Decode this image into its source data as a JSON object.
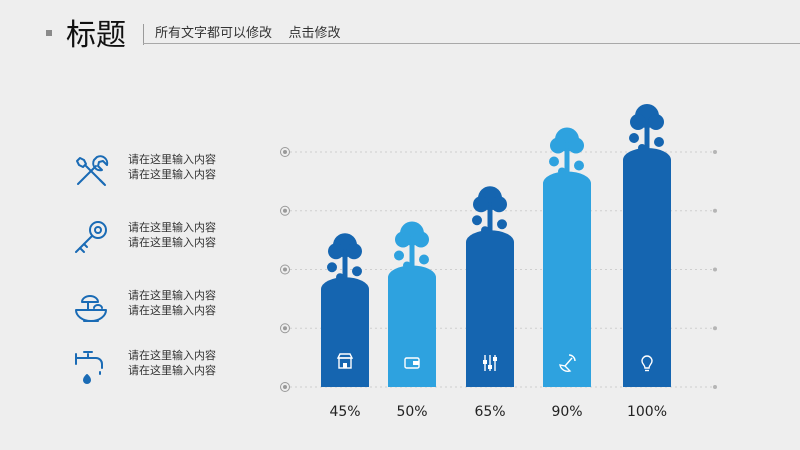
{
  "header": {
    "title": "标题",
    "subtitle": "所有文字都可以修改    点击修改"
  },
  "features": [
    {
      "icon": "tools-icon",
      "line1": "请在这里输入内容",
      "line2": "请在这里输入内容"
    },
    {
      "icon": "key-icon",
      "line1": "请在这里输入内容",
      "line2": "请在这里输入内容"
    },
    {
      "icon": "mushroom-bowl-icon",
      "line1": "请在这里输入内容",
      "line2": "请在这里输入内容"
    },
    {
      "icon": "faucet-icon",
      "line1": "请在这里输入内容",
      "line2": "请在这里输入内容"
    }
  ],
  "chart_data": {
    "type": "bar",
    "categories": [
      "45%",
      "50%",
      "65%",
      "90%",
      "100%"
    ],
    "values": [
      45,
      50,
      65,
      90,
      100
    ],
    "value_labels": [
      "45%",
      "50%",
      "65%",
      "90%",
      "100%"
    ],
    "bar_icons": [
      "shop-icon",
      "wallet-icon",
      "equalizer-icon",
      "satellite-icon",
      "lightbulb-icon"
    ],
    "colors": [
      "#1565b0",
      "#2ea2df",
      "#1565b0",
      "#2ea2df",
      "#1565b0"
    ],
    "ylim": [
      0,
      100
    ],
    "grid": true
  }
}
